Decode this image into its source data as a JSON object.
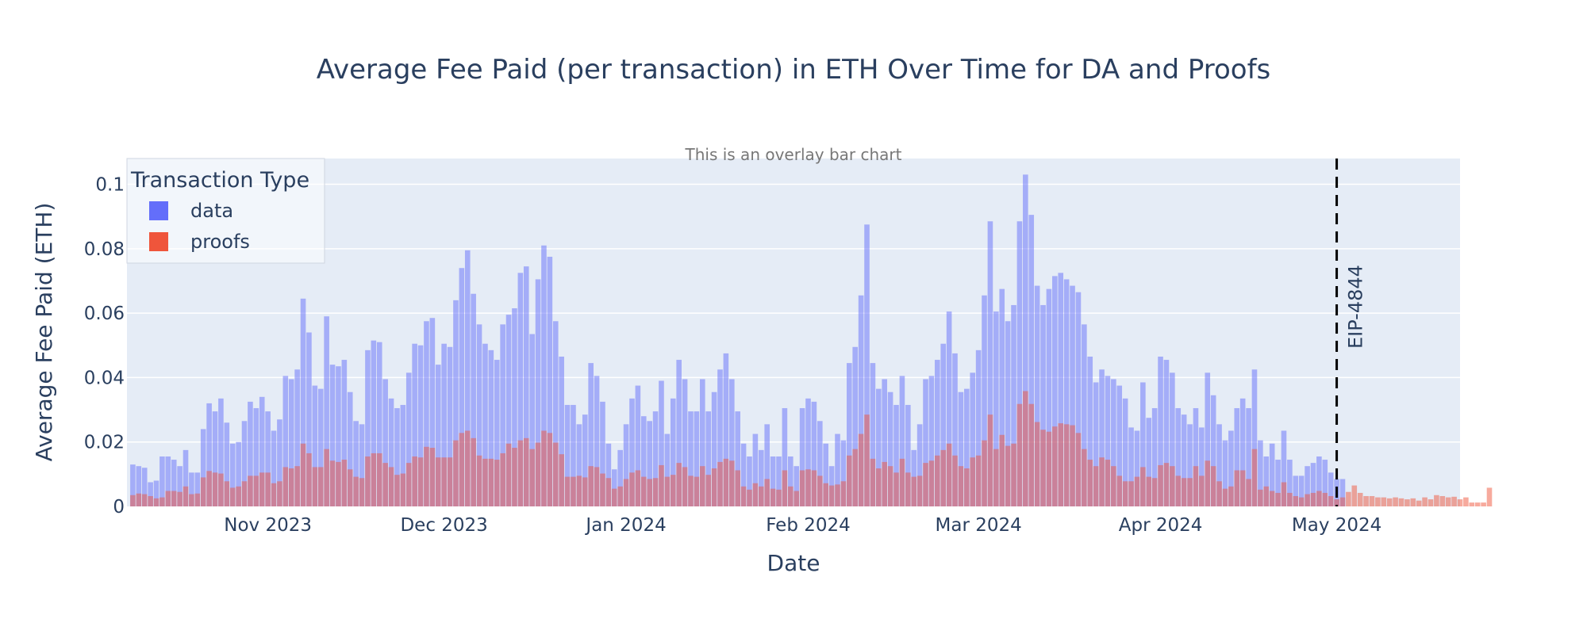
{
  "chart_data": {
    "type": "bar",
    "barmode": "overlay",
    "title": "Average Fee Paid (per transaction) in ETH Over Time for DA and Proofs",
    "subtitle": "This is an overlay bar chart",
    "xlabel": "Date",
    "ylabel": "Average Fee Paid (ETH)",
    "x_range": [
      "2023-10-08",
      "2024-05-22"
    ],
    "ylim": [
      0,
      0.108
    ],
    "y_ticks": [
      0,
      0.02,
      0.04,
      0.06,
      0.08,
      0.1
    ],
    "y_tick_labels": [
      "0",
      "0.02",
      "0.04",
      "0.06",
      "0.08",
      "0.1"
    ],
    "x_ticks": [
      {
        "date": "2023-11-01",
        "label": "Nov 2023"
      },
      {
        "date": "2023-12-01",
        "label": "Dec 2023"
      },
      {
        "date": "2024-01-01",
        "label": "Jan 2024"
      },
      {
        "date": "2024-02-01",
        "label": "Feb 2024"
      },
      {
        "date": "2024-03-01",
        "label": "Mar 2024"
      },
      {
        "date": "2024-04-01",
        "label": "Apr 2024"
      },
      {
        "date": "2024-05-01",
        "label": "May 2024"
      }
    ],
    "grid": true,
    "legend": {
      "title": "Transaction Type",
      "position": "top-left"
    },
    "start_date": "2023-10-09",
    "series": [
      {
        "name": "data",
        "color": "#636efa",
        "opacity": 0.5,
        "values": [
          0.013,
          0.0125,
          0.012,
          0.0075,
          0.008,
          0.0155,
          0.0155,
          0.0145,
          0.0125,
          0.0175,
          0.0105,
          0.0105,
          0.024,
          0.032,
          0.0295,
          0.0335,
          0.026,
          0.0195,
          0.02,
          0.0265,
          0.0325,
          0.0305,
          0.034,
          0.0295,
          0.0235,
          0.027,
          0.0405,
          0.0395,
          0.0425,
          0.0645,
          0.054,
          0.0375,
          0.0365,
          0.059,
          0.044,
          0.0435,
          0.0455,
          0.0355,
          0.0265,
          0.0255,
          0.0485,
          0.0515,
          0.051,
          0.0395,
          0.0335,
          0.0305,
          0.0315,
          0.0415,
          0.0505,
          0.05,
          0.0575,
          0.0585,
          0.044,
          0.0505,
          0.0495,
          0.064,
          0.074,
          0.0795,
          0.066,
          0.0565,
          0.0505,
          0.0485,
          0.0455,
          0.0565,
          0.0595,
          0.0615,
          0.0725,
          0.0745,
          0.0535,
          0.0705,
          0.081,
          0.0775,
          0.0575,
          0.0465,
          0.0315,
          0.0315,
          0.0255,
          0.0285,
          0.0445,
          0.0405,
          0.0325,
          0.0195,
          0.0115,
          0.0175,
          0.0255,
          0.0335,
          0.0375,
          0.028,
          0.0265,
          0.0295,
          0.039,
          0.0225,
          0.0335,
          0.0455,
          0.0395,
          0.0295,
          0.0295,
          0.0395,
          0.0295,
          0.0355,
          0.0425,
          0.0475,
          0.0395,
          0.0295,
          0.0195,
          0.0155,
          0.0225,
          0.0175,
          0.0255,
          0.0155,
          0.0155,
          0.0305,
          0.0155,
          0.0125,
          0.0305,
          0.0335,
          0.0325,
          0.0265,
          0.0195,
          0.0125,
          0.0225,
          0.0205,
          0.0445,
          0.0495,
          0.0655,
          0.0875,
          0.0445,
          0.0365,
          0.0395,
          0.0355,
          0.0315,
          0.0405,
          0.0315,
          0.0175,
          0.0255,
          0.0395,
          0.0405,
          0.0455,
          0.0505,
          0.0605,
          0.0475,
          0.0355,
          0.0365,
          0.0415,
          0.0485,
          0.0655,
          0.0885,
          0.0605,
          0.0675,
          0.0575,
          0.0625,
          0.0885,
          0.103,
          0.0905,
          0.0685,
          0.0625,
          0.0675,
          0.0715,
          0.0725,
          0.0705,
          0.0685,
          0.0665,
          0.0565,
          0.0465,
          0.0385,
          0.0425,
          0.0405,
          0.0395,
          0.0375,
          0.0335,
          0.0245,
          0.0235,
          0.0385,
          0.0275,
          0.0305,
          0.0465,
          0.0455,
          0.0415,
          0.0305,
          0.0285,
          0.0255,
          0.0305,
          0.0245,
          0.0415,
          0.0345,
          0.0255,
          0.0205,
          0.0235,
          0.0305,
          0.0335,
          0.0305,
          0.0425,
          0.0205,
          0.0155,
          0.0195,
          0.0145,
          0.0235,
          0.0145,
          0.0095,
          0.0095,
          0.0125,
          0.0135,
          0.0155,
          0.0145,
          0.0105,
          0.0085,
          0.0085
        ]
      },
      {
        "name": "proofs",
        "color": "#ef553b",
        "opacity": 0.5,
        "values": [
          0.0035,
          0.004,
          0.0038,
          0.0032,
          0.0025,
          0.0028,
          0.0048,
          0.0048,
          0.0045,
          0.0062,
          0.0038,
          0.004,
          0.009,
          0.011,
          0.0105,
          0.0102,
          0.0078,
          0.0058,
          0.0062,
          0.0078,
          0.0095,
          0.0095,
          0.0105,
          0.0105,
          0.0072,
          0.0078,
          0.0122,
          0.0118,
          0.0125,
          0.0195,
          0.0165,
          0.0122,
          0.0122,
          0.0178,
          0.0142,
          0.0138,
          0.0145,
          0.0115,
          0.0092,
          0.0088,
          0.0155,
          0.0165,
          0.0165,
          0.0135,
          0.0122,
          0.0098,
          0.0102,
          0.0135,
          0.0155,
          0.0152,
          0.0185,
          0.0182,
          0.0152,
          0.0152,
          0.0152,
          0.0205,
          0.0228,
          0.0235,
          0.0212,
          0.0158,
          0.0148,
          0.0148,
          0.0145,
          0.0165,
          0.0195,
          0.0182,
          0.0205,
          0.0212,
          0.0178,
          0.0198,
          0.0235,
          0.0228,
          0.0198,
          0.0162,
          0.0092,
          0.0092,
          0.0095,
          0.009,
          0.0125,
          0.0122,
          0.0102,
          0.0088,
          0.0055,
          0.0062,
          0.0085,
          0.0105,
          0.0112,
          0.0092,
          0.0085,
          0.0088,
          0.0128,
          0.0092,
          0.0098,
          0.0135,
          0.0122,
          0.0095,
          0.0092,
          0.0125,
          0.0098,
          0.0118,
          0.0138,
          0.0148,
          0.0142,
          0.0112,
          0.0062,
          0.0052,
          0.0072,
          0.0062,
          0.0085,
          0.0055,
          0.0052,
          0.0112,
          0.0062,
          0.0048,
          0.0112,
          0.0115,
          0.0112,
          0.0095,
          0.0072,
          0.0065,
          0.0068,
          0.0078,
          0.0158,
          0.0178,
          0.0225,
          0.0285,
          0.0148,
          0.0118,
          0.0138,
          0.0125,
          0.0105,
          0.0148,
          0.0105,
          0.0092,
          0.0095,
          0.0135,
          0.0142,
          0.0158,
          0.0175,
          0.0195,
          0.0158,
          0.0125,
          0.0118,
          0.0152,
          0.0158,
          0.0205,
          0.0285,
          0.0178,
          0.0222,
          0.0188,
          0.0195,
          0.0318,
          0.0358,
          0.0318,
          0.0262,
          0.0238,
          0.0232,
          0.0248,
          0.0258,
          0.0255,
          0.0252,
          0.0228,
          0.0178,
          0.0145,
          0.0125,
          0.0152,
          0.0145,
          0.0125,
          0.0095,
          0.0078,
          0.0078,
          0.0092,
          0.0122,
          0.0092,
          0.0088,
          0.0128,
          0.0135,
          0.0125,
          0.0095,
          0.0088,
          0.0088,
          0.0125,
          0.0095,
          0.0142,
          0.0125,
          0.0078,
          0.0055,
          0.0062,
          0.0112,
          0.0112,
          0.0085,
          0.0178,
          0.0052,
          0.0062,
          0.0048,
          0.0042,
          0.0075,
          0.0042,
          0.0032,
          0.0028,
          0.0038,
          0.0042,
          0.0048,
          0.0042,
          0.0032,
          0.0022,
          0.0028,
          0.0045,
          0.0065,
          0.0042,
          0.0032,
          0.0032,
          0.0028,
          0.0028,
          0.0025,
          0.0028,
          0.0025,
          0.0022,
          0.0025,
          0.0018,
          0.0028,
          0.0022,
          0.0035,
          0.0032,
          0.0028,
          0.003,
          0.0022,
          0.0028,
          0.0012,
          0.0012,
          0.0012,
          0.0058
        ]
      }
    ],
    "vline": {
      "date": "2024-05-01",
      "label": "EIP-4844",
      "style": "dashed",
      "color": "#000000"
    }
  }
}
